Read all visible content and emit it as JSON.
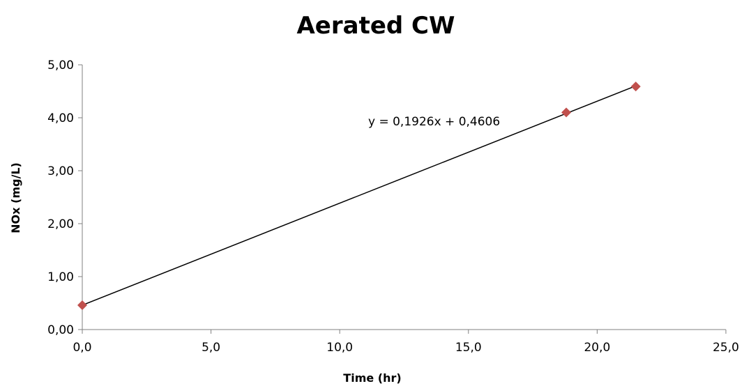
{
  "chart_data": {
    "type": "scatter",
    "title": "Aerated CW",
    "xlabel": "Time (hr)",
    "ylabel": "NOx (mg/L)",
    "xlim": [
      0,
      25
    ],
    "ylim": [
      0,
      5
    ],
    "x_ticks": [
      "0,0",
      "5,0",
      "10,0",
      "15,0",
      "20,0",
      "25,0"
    ],
    "y_ticks": [
      "0,00",
      "1,00",
      "2,00",
      "3,00",
      "4,00",
      "5,00"
    ],
    "grid": false,
    "legend": "none",
    "series": [
      {
        "points": [
          {
            "x": 0.0,
            "y": 0.46
          },
          {
            "x": 18.8,
            "y": 4.1
          },
          {
            "x": 21.5,
            "y": 4.59
          }
        ],
        "marker": "diamond",
        "color": "#c0504d"
      }
    ],
    "trendline": {
      "slope": 0.1926,
      "intercept": 0.4606,
      "x_range": [
        0.0,
        21.5
      ],
      "equation_label": "y = 0,1926x + 0,4606",
      "color": "#000000"
    }
  }
}
